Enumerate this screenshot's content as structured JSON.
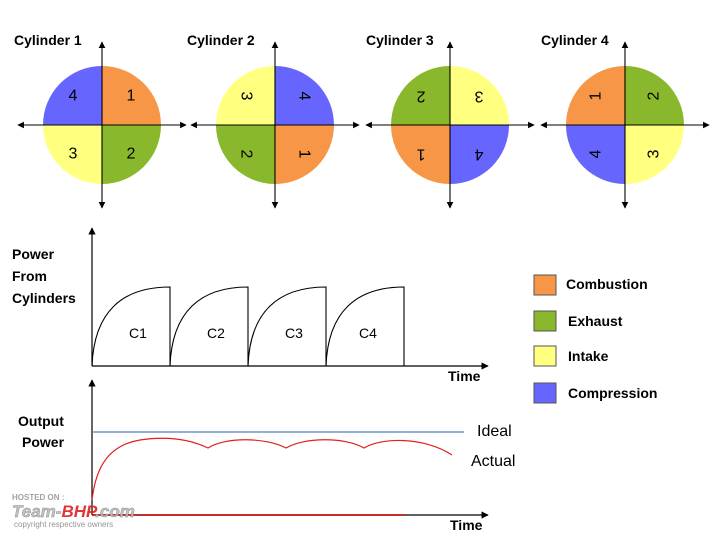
{
  "colors": {
    "combustion": "#f79646",
    "exhaust": "#8ab82c",
    "intake": "#ffff80",
    "compression": "#6666ff",
    "ideal_line": "#4f81bd",
    "actual_line": "#e02020"
  },
  "cylinders": [
    {
      "title": "Cylinder 1",
      "quadrants": [
        {
          "pos": "TL",
          "num": "4",
          "phase": "compression",
          "rot": 0
        },
        {
          "pos": "TR",
          "num": "1",
          "phase": "combustion",
          "rot": 0
        },
        {
          "pos": "BL",
          "num": "3",
          "phase": "intake",
          "rot": 0
        },
        {
          "pos": "BR",
          "num": "2",
          "phase": "exhaust",
          "rot": 0
        }
      ]
    },
    {
      "title": "Cylinder 2",
      "quadrants": [
        {
          "pos": "TL",
          "num": "3",
          "phase": "intake",
          "rot": 90
        },
        {
          "pos": "TR",
          "num": "4",
          "phase": "compression",
          "rot": 90
        },
        {
          "pos": "BL",
          "num": "2",
          "phase": "exhaust",
          "rot": 90
        },
        {
          "pos": "BR",
          "num": "1",
          "phase": "combustion",
          "rot": 90
        }
      ]
    },
    {
      "title": "Cylinder 3",
      "quadrants": [
        {
          "pos": "TL",
          "num": "2",
          "phase": "exhaust",
          "rot": 180
        },
        {
          "pos": "TR",
          "num": "3",
          "phase": "intake",
          "rot": 180
        },
        {
          "pos": "BL",
          "num": "1",
          "phase": "combustion",
          "rot": 180
        },
        {
          "pos": "BR",
          "num": "4",
          "phase": "compression",
          "rot": 180
        }
      ]
    },
    {
      "title": "Cylinder 4",
      "quadrants": [
        {
          "pos": "TL",
          "num": "1",
          "phase": "combustion",
          "rot": 270
        },
        {
          "pos": "TR",
          "num": "2",
          "phase": "exhaust",
          "rot": 270
        },
        {
          "pos": "BL",
          "num": "4",
          "phase": "compression",
          "rot": 270
        },
        {
          "pos": "BR",
          "num": "3",
          "phase": "intake",
          "rot": 270
        }
      ]
    }
  ],
  "power_graph": {
    "ylabel": [
      "Power",
      "From",
      "Cylinders"
    ],
    "xlabel": "Time",
    "pulses": [
      "C1",
      "C2",
      "C3",
      "C4"
    ]
  },
  "output_graph": {
    "ylabel": [
      "Output",
      "Power"
    ],
    "xlabel": "Time",
    "ideal_label": "Ideal",
    "actual_label": "Actual"
  },
  "legend": [
    {
      "label": "Combustion",
      "phase": "combustion"
    },
    {
      "label": "Exhaust",
      "phase": "exhaust"
    },
    {
      "label": "Intake",
      "phase": "intake"
    },
    {
      "label": "Compression",
      "phase": "compression"
    }
  ],
  "watermark": {
    "hosted": "HOSTED ON :",
    "brand_a": "Team-",
    "brand_b": "BHP",
    "brand_c": ".com",
    "copyright": "copyright respective owners"
  }
}
